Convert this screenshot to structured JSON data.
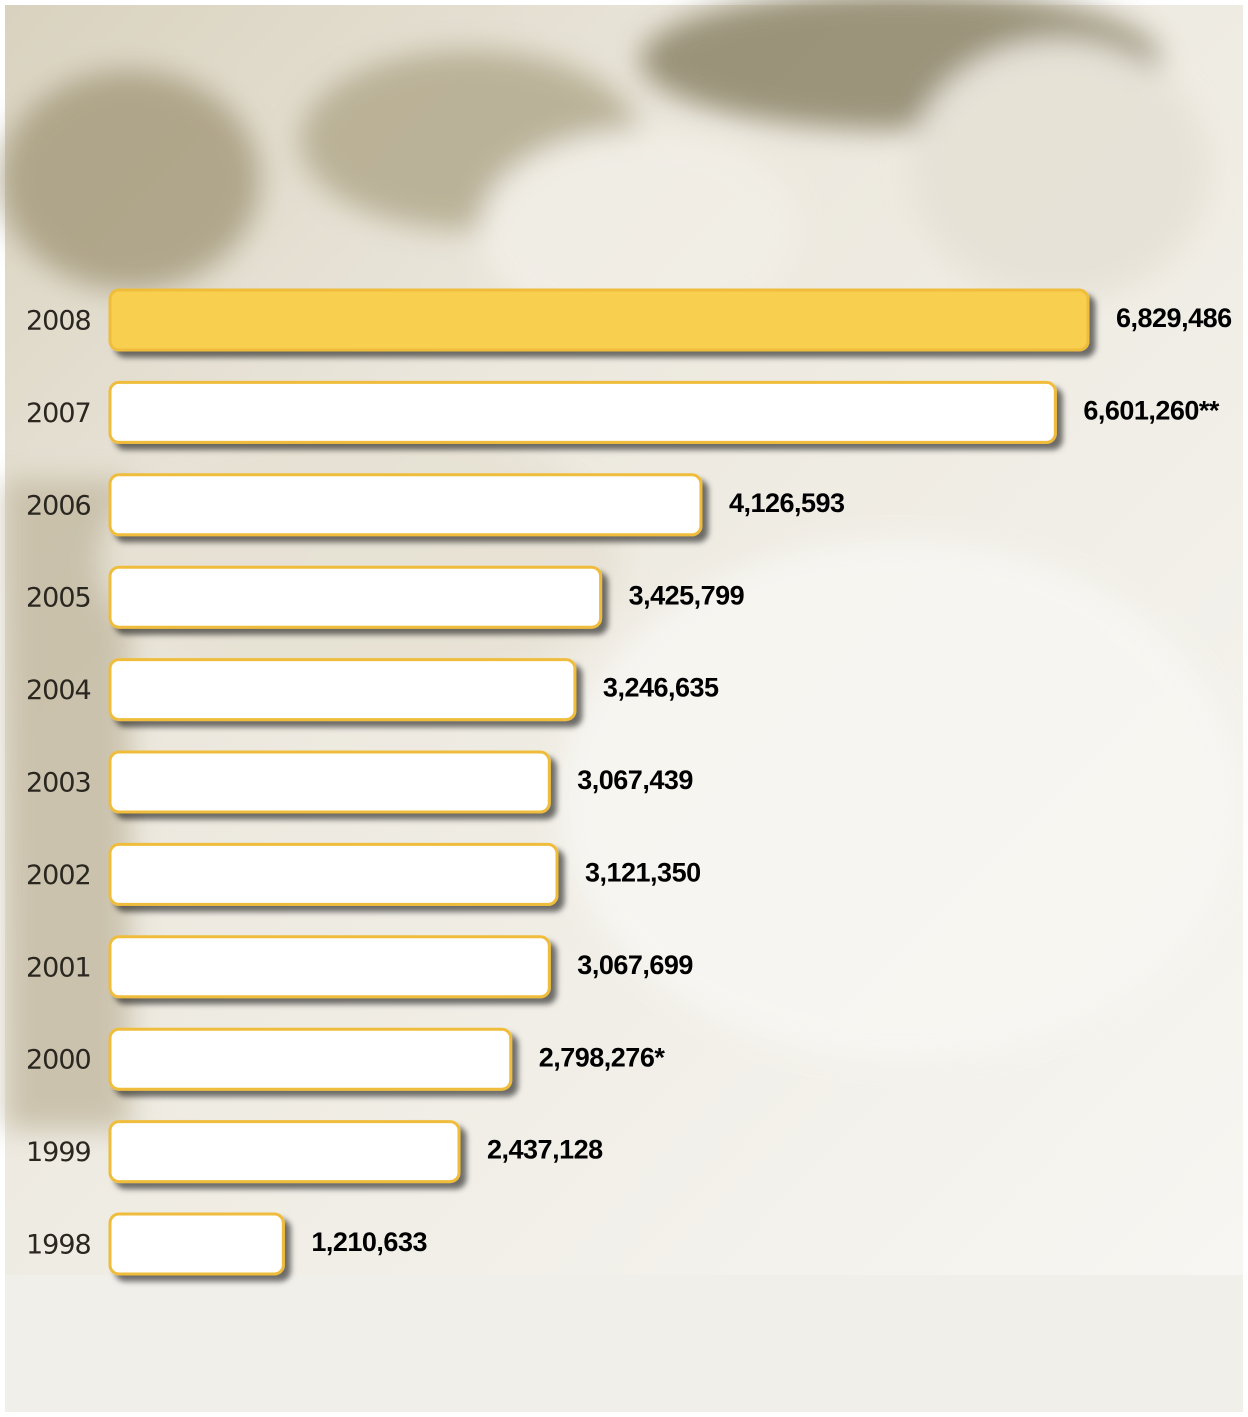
{
  "chart_data": {
    "type": "bar",
    "orientation": "horizontal",
    "categories": [
      "2008",
      "2007",
      "2006",
      "2005",
      "2004",
      "2003",
      "2002",
      "2001",
      "2000",
      "1999",
      "1998"
    ],
    "values": [
      6829486,
      6601260,
      4126593,
      3425799,
      3246635,
      3067439,
      3121350,
      3067699,
      2798276,
      2437128,
      1210633
    ],
    "value_labels": [
      "6,829,486",
      "6,601,260**",
      "4,126,593",
      "3,425,799",
      "3,246,635",
      "3,067,439",
      "3,121,350",
      "3,067,699",
      "2,798,276*",
      "2,437,128",
      "1,210,633"
    ],
    "colors": [
      "#f9cf4f",
      "#ffffff",
      "#ffffff",
      "#ffffff",
      "#ffffff",
      "#ffffff",
      "#ffffff",
      "#ffffff",
      "#ffffff",
      "#ffffff",
      "#ffffff"
    ],
    "border_color": "#efbd3a"
  }
}
